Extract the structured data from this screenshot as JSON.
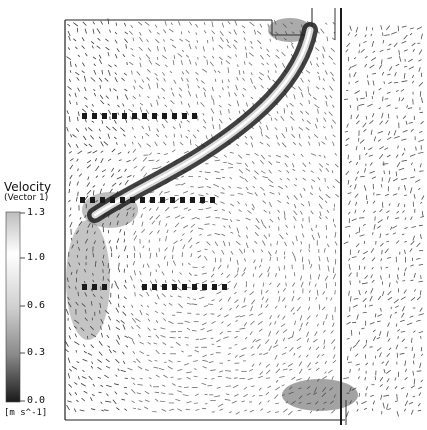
{
  "legend": {
    "title": "Velocity",
    "subtitle": "(Vector 1)",
    "unit": "[m s^-1]",
    "ticks": [
      "1.3",
      "1.0",
      "0.6",
      "0.3",
      "0.0"
    ],
    "range": [
      0.0,
      1.3
    ]
  },
  "colors": {
    "max": "#c8c8c8",
    "mid": "#ffffff",
    "min": "#1a1a1a",
    "ink": "#111111"
  },
  "icons": {
    "baffle": "vertical-baffle-line",
    "inlet": "top-inlet-slot",
    "probe": "probe-points-dotted"
  }
}
